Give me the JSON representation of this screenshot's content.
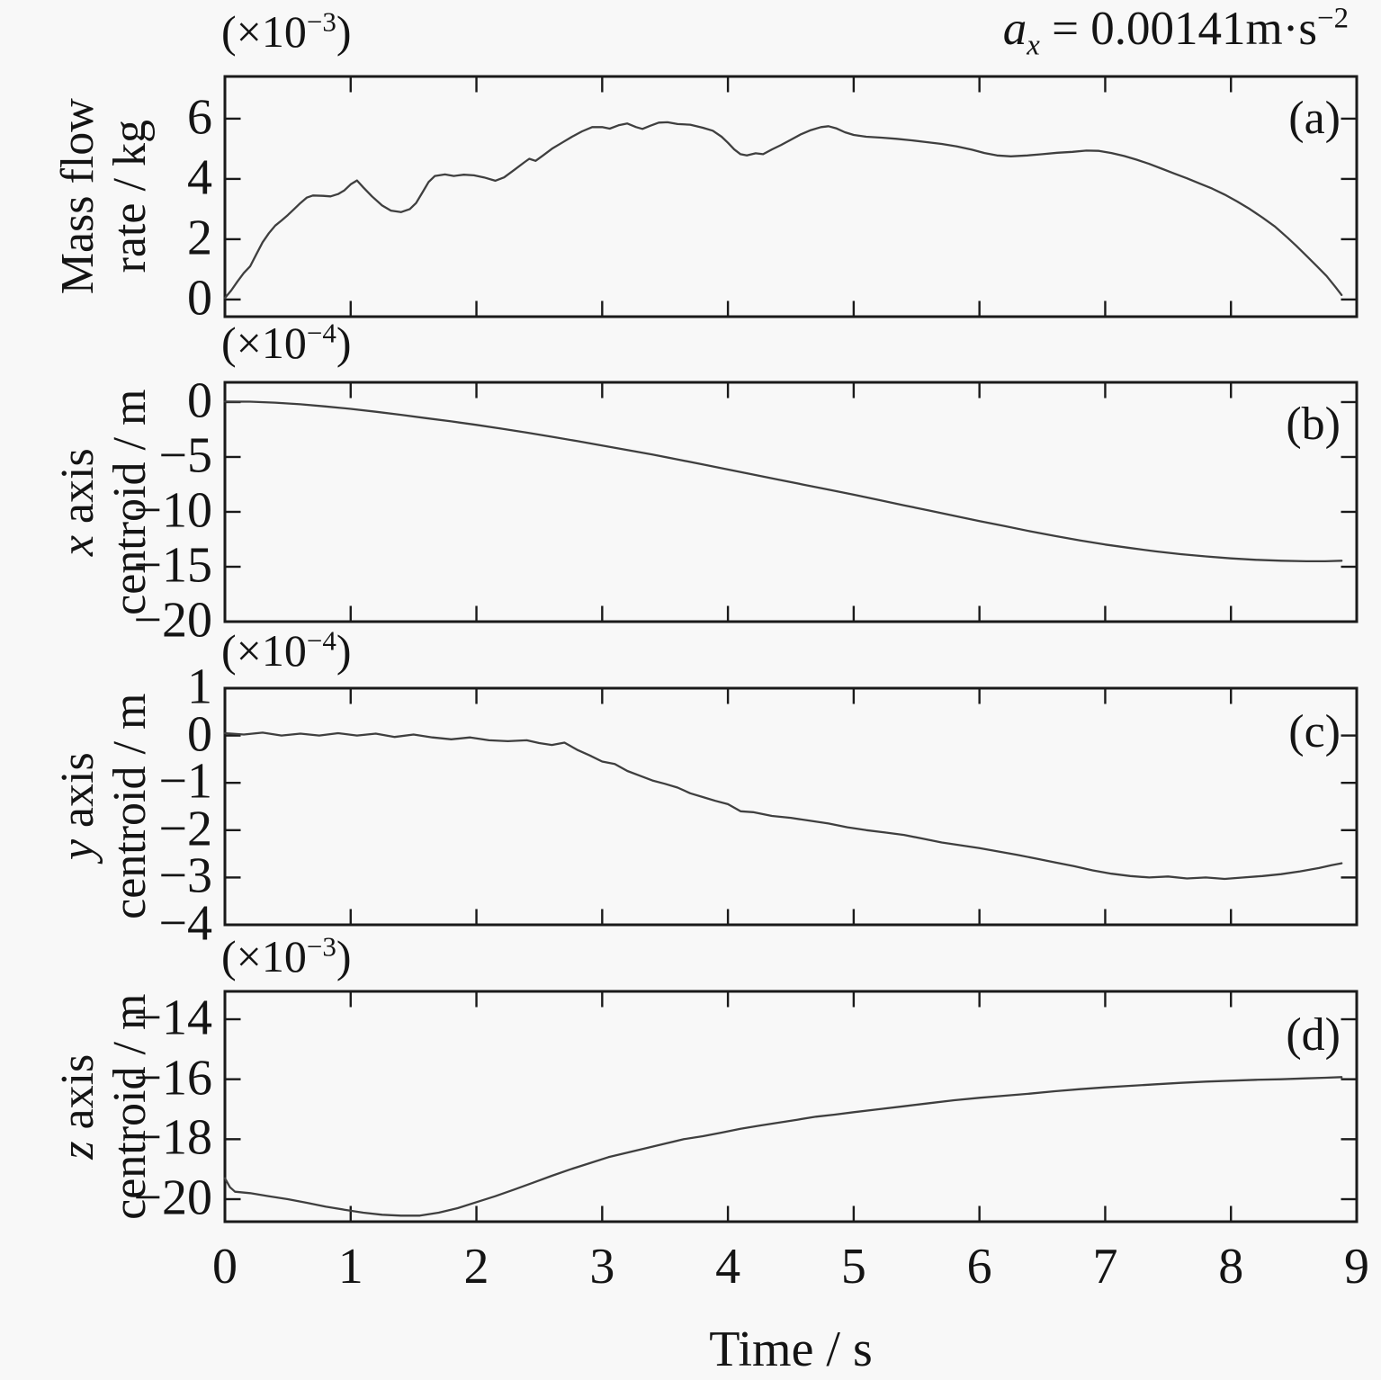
{
  "title": {
    "var": "a",
    "sub": "x",
    "eq": " = 0.00141",
    "unit": "m·s",
    "exp": "−2"
  },
  "background": "#f8f8f8",
  "line_color": "#3f3f3f",
  "axis_color": "#1a1a1a",
  "x_axis": {
    "label": "Time / s",
    "lim": [
      0,
      9
    ],
    "ticks": [
      "0",
      "1",
      "2",
      "3",
      "4",
      "5",
      "6",
      "7",
      "8",
      "9"
    ]
  },
  "chart_data": [
    {
      "type": "line",
      "panel_label": "(a)",
      "ylabel": {
        "italic": "",
        "line1": "Mass flow",
        "line2": "rate / kg"
      },
      "scale": {
        "prefix": "(×10",
        "exp": "−3",
        "suffix": ")"
      },
      "ylim": [
        -0.57,
        7.4
      ],
      "yticks": [
        {
          "v": 6,
          "t": "6"
        },
        {
          "v": 4,
          "t": "4"
        },
        {
          "v": 2,
          "t": "2"
        },
        {
          "v": 0,
          "t": "0"
        }
      ],
      "points": [
        [
          0,
          0.05
        ],
        [
          0.05,
          0.3
        ],
        [
          0.1,
          0.6
        ],
        [
          0.15,
          0.88
        ],
        [
          0.2,
          1.1
        ],
        [
          0.25,
          1.5
        ],
        [
          0.3,
          1.9
        ],
        [
          0.35,
          2.2
        ],
        [
          0.4,
          2.45
        ],
        [
          0.45,
          2.62
        ],
        [
          0.5,
          2.8
        ],
        [
          0.55,
          3.0
        ],
        [
          0.6,
          3.2
        ],
        [
          0.65,
          3.38
        ],
        [
          0.7,
          3.45
        ],
        [
          0.78,
          3.44
        ],
        [
          0.84,
          3.42
        ],
        [
          0.9,
          3.5
        ],
        [
          0.95,
          3.62
        ],
        [
          1.0,
          3.82
        ],
        [
          1.05,
          3.95
        ],
        [
          1.1,
          3.72
        ],
        [
          1.17,
          3.42
        ],
        [
          1.25,
          3.12
        ],
        [
          1.32,
          2.95
        ],
        [
          1.4,
          2.9
        ],
        [
          1.47,
          3.0
        ],
        [
          1.52,
          3.2
        ],
        [
          1.57,
          3.55
        ],
        [
          1.62,
          3.9
        ],
        [
          1.67,
          4.1
        ],
        [
          1.75,
          4.15
        ],
        [
          1.82,
          4.1
        ],
        [
          1.9,
          4.14
        ],
        [
          1.98,
          4.12
        ],
        [
          2.06,
          4.05
        ],
        [
          2.15,
          3.94
        ],
        [
          2.22,
          4.05
        ],
        [
          2.3,
          4.3
        ],
        [
          2.38,
          4.55
        ],
        [
          2.42,
          4.67
        ],
        [
          2.47,
          4.6
        ],
        [
          2.53,
          4.78
        ],
        [
          2.6,
          5.0
        ],
        [
          2.68,
          5.2
        ],
        [
          2.76,
          5.4
        ],
        [
          2.84,
          5.58
        ],
        [
          2.92,
          5.72
        ],
        [
          3.0,
          5.72
        ],
        [
          3.06,
          5.67
        ],
        [
          3.13,
          5.78
        ],
        [
          3.2,
          5.84
        ],
        [
          3.27,
          5.72
        ],
        [
          3.32,
          5.66
        ],
        [
          3.38,
          5.76
        ],
        [
          3.45,
          5.87
        ],
        [
          3.52,
          5.88
        ],
        [
          3.6,
          5.82
        ],
        [
          3.7,
          5.8
        ],
        [
          3.8,
          5.7
        ],
        [
          3.88,
          5.6
        ],
        [
          3.95,
          5.4
        ],
        [
          4.0,
          5.2
        ],
        [
          4.05,
          4.98
        ],
        [
          4.1,
          4.82
        ],
        [
          4.15,
          4.78
        ],
        [
          4.22,
          4.85
        ],
        [
          4.28,
          4.82
        ],
        [
          4.35,
          4.98
        ],
        [
          4.42,
          5.12
        ],
        [
          4.5,
          5.3
        ],
        [
          4.58,
          5.48
        ],
        [
          4.66,
          5.62
        ],
        [
          4.74,
          5.72
        ],
        [
          4.8,
          5.75
        ],
        [
          4.86,
          5.68
        ],
        [
          4.93,
          5.55
        ],
        [
          5.0,
          5.46
        ],
        [
          5.1,
          5.4
        ],
        [
          5.22,
          5.37
        ],
        [
          5.34,
          5.33
        ],
        [
          5.46,
          5.28
        ],
        [
          5.58,
          5.22
        ],
        [
          5.7,
          5.16
        ],
        [
          5.82,
          5.08
        ],
        [
          5.94,
          4.97
        ],
        [
          6.04,
          4.86
        ],
        [
          6.14,
          4.78
        ],
        [
          6.25,
          4.75
        ],
        [
          6.38,
          4.78
        ],
        [
          6.5,
          4.82
        ],
        [
          6.62,
          4.87
        ],
        [
          6.74,
          4.9
        ],
        [
          6.85,
          4.94
        ],
        [
          6.95,
          4.93
        ],
        [
          7.05,
          4.86
        ],
        [
          7.15,
          4.76
        ],
        [
          7.25,
          4.64
        ],
        [
          7.35,
          4.5
        ],
        [
          7.45,
          4.34
        ],
        [
          7.55,
          4.18
        ],
        [
          7.65,
          4.02
        ],
        [
          7.75,
          3.85
        ],
        [
          7.85,
          3.68
        ],
        [
          7.95,
          3.48
        ],
        [
          8.05,
          3.25
        ],
        [
          8.15,
          3.0
        ],
        [
          8.25,
          2.72
        ],
        [
          8.35,
          2.42
        ],
        [
          8.45,
          2.05
        ],
        [
          8.52,
          1.78
        ],
        [
          8.6,
          1.45
        ],
        [
          8.68,
          1.12
        ],
        [
          8.76,
          0.78
        ],
        [
          8.83,
          0.42
        ],
        [
          8.88,
          0.15
        ]
      ]
    },
    {
      "type": "line",
      "panel_label": "(b)",
      "ylabel": {
        "italic": "x",
        "line1": " axis",
        "line2": "centroid / m"
      },
      "scale": {
        "prefix": "(×10",
        "exp": "−4",
        "suffix": ")"
      },
      "ylim": [
        -20.0,
        1.8
      ],
      "yticks": [
        {
          "v": 0,
          "t": "0"
        },
        {
          "v": -5,
          "t": "−5"
        },
        {
          "v": -10,
          "t": "−10"
        },
        {
          "v": -15,
          "t": "−15"
        },
        {
          "v": -20,
          "t": "−20"
        }
      ],
      "points": [
        [
          0,
          0.05
        ],
        [
          0.2,
          0.04
        ],
        [
          0.4,
          -0.05
        ],
        [
          0.6,
          -0.2
        ],
        [
          0.8,
          -0.4
        ],
        [
          1.0,
          -0.62
        ],
        [
          1.2,
          -0.88
        ],
        [
          1.4,
          -1.16
        ],
        [
          1.6,
          -1.46
        ],
        [
          1.8,
          -1.76
        ],
        [
          2.0,
          -2.08
        ],
        [
          2.2,
          -2.42
        ],
        [
          2.4,
          -2.78
        ],
        [
          2.6,
          -3.16
        ],
        [
          2.8,
          -3.55
        ],
        [
          3.0,
          -3.95
        ],
        [
          3.2,
          -4.36
        ],
        [
          3.4,
          -4.78
        ],
        [
          3.6,
          -5.22
        ],
        [
          3.8,
          -5.68
        ],
        [
          4.0,
          -6.14
        ],
        [
          4.2,
          -6.6
        ],
        [
          4.4,
          -7.06
        ],
        [
          4.6,
          -7.52
        ],
        [
          4.8,
          -7.98
        ],
        [
          5.0,
          -8.44
        ],
        [
          5.2,
          -8.92
        ],
        [
          5.4,
          -9.4
        ],
        [
          5.6,
          -9.88
        ],
        [
          5.8,
          -10.36
        ],
        [
          6.0,
          -10.84
        ],
        [
          6.2,
          -11.3
        ],
        [
          6.4,
          -11.76
        ],
        [
          6.6,
          -12.2
        ],
        [
          6.8,
          -12.6
        ],
        [
          7.0,
          -12.98
        ],
        [
          7.2,
          -13.3
        ],
        [
          7.4,
          -13.6
        ],
        [
          7.6,
          -13.85
        ],
        [
          7.8,
          -14.06
        ],
        [
          8.0,
          -14.24
        ],
        [
          8.2,
          -14.37
        ],
        [
          8.4,
          -14.45
        ],
        [
          8.6,
          -14.5
        ],
        [
          8.75,
          -14.5
        ],
        [
          8.88,
          -14.45
        ]
      ]
    },
    {
      "type": "line",
      "panel_label": "(c)",
      "ylabel": {
        "italic": "y",
        "line1": " axis",
        "line2": "centroid / m"
      },
      "scale": {
        "prefix": "(×10",
        "exp": "−4",
        "suffix": ")"
      },
      "ylim": [
        -4.0,
        1.0
      ],
      "yticks": [
        {
          "v": 1,
          "t": "1"
        },
        {
          "v": 0,
          "t": "0"
        },
        {
          "v": -1,
          "t": "−1"
        },
        {
          "v": -2,
          "t": "−2"
        },
        {
          "v": -3,
          "t": "−3"
        },
        {
          "v": -4,
          "t": "−4"
        }
      ],
      "points": [
        [
          0,
          0.05
        ],
        [
          0.15,
          0.02
        ],
        [
          0.3,
          0.06
        ],
        [
          0.45,
          0.0
        ],
        [
          0.6,
          0.04
        ],
        [
          0.75,
          0.0
        ],
        [
          0.9,
          0.05
        ],
        [
          1.05,
          0.0
        ],
        [
          1.2,
          0.04
        ],
        [
          1.35,
          -0.03
        ],
        [
          1.5,
          0.02
        ],
        [
          1.65,
          -0.04
        ],
        [
          1.8,
          -0.08
        ],
        [
          1.95,
          -0.04
        ],
        [
          2.1,
          -0.1
        ],
        [
          2.25,
          -0.12
        ],
        [
          2.4,
          -0.1
        ],
        [
          2.5,
          -0.16
        ],
        [
          2.6,
          -0.2
        ],
        [
          2.7,
          -0.15
        ],
        [
          2.8,
          -0.3
        ],
        [
          2.9,
          -0.42
        ],
        [
          3.0,
          -0.55
        ],
        [
          3.1,
          -0.6
        ],
        [
          3.2,
          -0.75
        ],
        [
          3.3,
          -0.85
        ],
        [
          3.4,
          -0.95
        ],
        [
          3.5,
          -1.02
        ],
        [
          3.6,
          -1.1
        ],
        [
          3.7,
          -1.22
        ],
        [
          3.8,
          -1.3
        ],
        [
          3.9,
          -1.38
        ],
        [
          4.0,
          -1.45
        ],
        [
          4.1,
          -1.6
        ],
        [
          4.2,
          -1.62
        ],
        [
          4.35,
          -1.7
        ],
        [
          4.5,
          -1.74
        ],
        [
          4.65,
          -1.8
        ],
        [
          4.8,
          -1.86
        ],
        [
          4.95,
          -1.94
        ],
        [
          5.1,
          -2.0
        ],
        [
          5.25,
          -2.05
        ],
        [
          5.4,
          -2.1
        ],
        [
          5.55,
          -2.18
        ],
        [
          5.7,
          -2.26
        ],
        [
          5.85,
          -2.32
        ],
        [
          6.0,
          -2.38
        ],
        [
          6.15,
          -2.45
        ],
        [
          6.3,
          -2.52
        ],
        [
          6.45,
          -2.6
        ],
        [
          6.6,
          -2.68
        ],
        [
          6.75,
          -2.76
        ],
        [
          6.9,
          -2.85
        ],
        [
          7.05,
          -2.92
        ],
        [
          7.2,
          -2.97
        ],
        [
          7.35,
          -3.0
        ],
        [
          7.5,
          -2.98
        ],
        [
          7.65,
          -3.02
        ],
        [
          7.8,
          -3.0
        ],
        [
          7.95,
          -3.03
        ],
        [
          8.1,
          -3.0
        ],
        [
          8.25,
          -2.97
        ],
        [
          8.4,
          -2.93
        ],
        [
          8.55,
          -2.87
        ],
        [
          8.7,
          -2.8
        ],
        [
          8.8,
          -2.74
        ],
        [
          8.88,
          -2.7
        ]
      ]
    },
    {
      "type": "line",
      "panel_label": "(d)",
      "ylabel": {
        "italic": "z",
        "line1": " axis",
        "line2": "centroid / m"
      },
      "scale": {
        "prefix": "(×10",
        "exp": "−3",
        "suffix": ")"
      },
      "ylim": [
        -20.75,
        -13.07
      ],
      "yticks": [
        {
          "v": -14,
          "t": "−14"
        },
        {
          "v": -16,
          "t": "−16"
        },
        {
          "v": -18,
          "t": "−18"
        },
        {
          "v": -20,
          "t": "−20"
        }
      ],
      "points": [
        [
          0,
          -19.3
        ],
        [
          0.04,
          -19.6
        ],
        [
          0.08,
          -19.75
        ],
        [
          0.2,
          -19.8
        ],
        [
          0.35,
          -19.9
        ],
        [
          0.5,
          -20.0
        ],
        [
          0.65,
          -20.12
        ],
        [
          0.8,
          -20.25
        ],
        [
          0.95,
          -20.35
        ],
        [
          1.1,
          -20.45
        ],
        [
          1.25,
          -20.52
        ],
        [
          1.4,
          -20.55
        ],
        [
          1.55,
          -20.55
        ],
        [
          1.7,
          -20.45
        ],
        [
          1.85,
          -20.3
        ],
        [
          2.0,
          -20.1
        ],
        [
          2.15,
          -19.9
        ],
        [
          2.3,
          -19.68
        ],
        [
          2.45,
          -19.45
        ],
        [
          2.6,
          -19.22
        ],
        [
          2.75,
          -19.0
        ],
        [
          2.9,
          -18.8
        ],
        [
          3.05,
          -18.6
        ],
        [
          3.2,
          -18.45
        ],
        [
          3.35,
          -18.3
        ],
        [
          3.5,
          -18.15
        ],
        [
          3.65,
          -18.0
        ],
        [
          3.8,
          -17.9
        ],
        [
          3.95,
          -17.78
        ],
        [
          4.1,
          -17.65
        ],
        [
          4.25,
          -17.55
        ],
        [
          4.4,
          -17.45
        ],
        [
          4.55,
          -17.35
        ],
        [
          4.7,
          -17.25
        ],
        [
          4.85,
          -17.18
        ],
        [
          5.0,
          -17.1
        ],
        [
          5.2,
          -17.0
        ],
        [
          5.4,
          -16.9
        ],
        [
          5.6,
          -16.8
        ],
        [
          5.8,
          -16.7
        ],
        [
          6.0,
          -16.62
        ],
        [
          6.2,
          -16.55
        ],
        [
          6.4,
          -16.48
        ],
        [
          6.6,
          -16.4
        ],
        [
          6.8,
          -16.33
        ],
        [
          7.0,
          -16.27
        ],
        [
          7.2,
          -16.22
        ],
        [
          7.4,
          -16.17
        ],
        [
          7.6,
          -16.12
        ],
        [
          7.8,
          -16.08
        ],
        [
          8.0,
          -16.05
        ],
        [
          8.2,
          -16.02
        ],
        [
          8.4,
          -16.0
        ],
        [
          8.6,
          -15.97
        ],
        [
          8.75,
          -15.95
        ],
        [
          8.88,
          -15.93
        ]
      ]
    }
  ]
}
